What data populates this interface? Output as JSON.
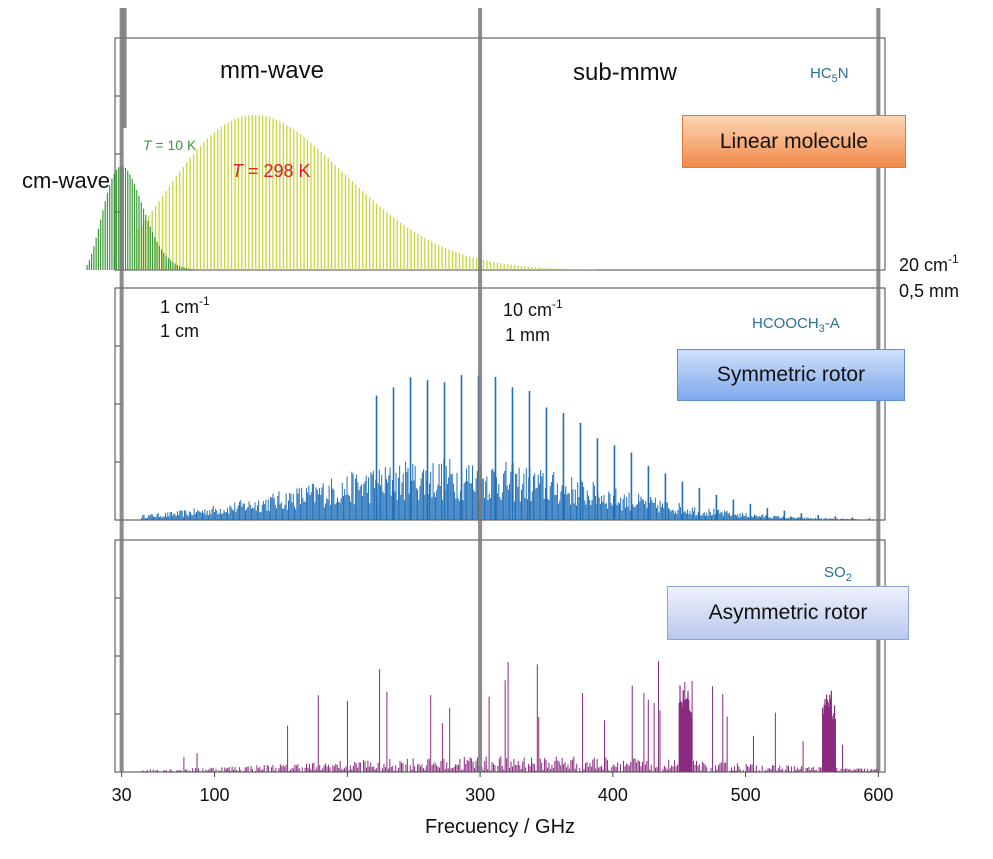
{
  "chart_data": {
    "type": "bar",
    "xlabel": "Frecuency / GHz",
    "x_ticks": [
      30,
      100,
      200,
      300,
      400,
      500,
      600
    ],
    "xlim": [
      25,
      605
    ],
    "bands": [
      {
        "label": "cm-wave"
      },
      {
        "label": "mm-wave"
      },
      {
        "label": "sub-mmw"
      }
    ],
    "markers": [
      {
        "x": 30,
        "wavenumber": "1 cm",
        "wavenumber_sup": "-1",
        "wavelength": "1 cm"
      },
      {
        "x": 300,
        "wavenumber": "10 cm",
        "wavenumber_sup": "-1",
        "wavelength": "1 mm"
      },
      {
        "x": 600,
        "wavenumber": "20 cm",
        "wavenumber_sup": "-1",
        "wavelength": "0,5 mm"
      }
    ],
    "panels": [
      {
        "molecule": "HC",
        "molecule_sub": "5",
        "molecule_tail": "N",
        "label": "Linear molecule",
        "series": [
          {
            "temperature_prefix": "T",
            "temperature_suffix": " = 10 K",
            "color": "#3a9a3a",
            "peak_x": 30,
            "peak_rel": 0.67
          },
          {
            "temperature_prefix": "T",
            "temperature_suffix": " = 298 K",
            "color": "#c9d63a",
            "peak_x": 130,
            "peak_rel": 1.0
          }
        ]
      },
      {
        "molecule": "HCOOCH",
        "molecule_sub": "3",
        "molecule_tail": "-A",
        "label": "Symmetric rotor",
        "color": "#1f6fb8",
        "peak_x": 280
      },
      {
        "molecule": "SO",
        "molecule_sub": "2",
        "molecule_tail": "",
        "label": "Asymmetric rotor",
        "color": "#8a2a80",
        "peak_x": 330
      }
    ]
  }
}
